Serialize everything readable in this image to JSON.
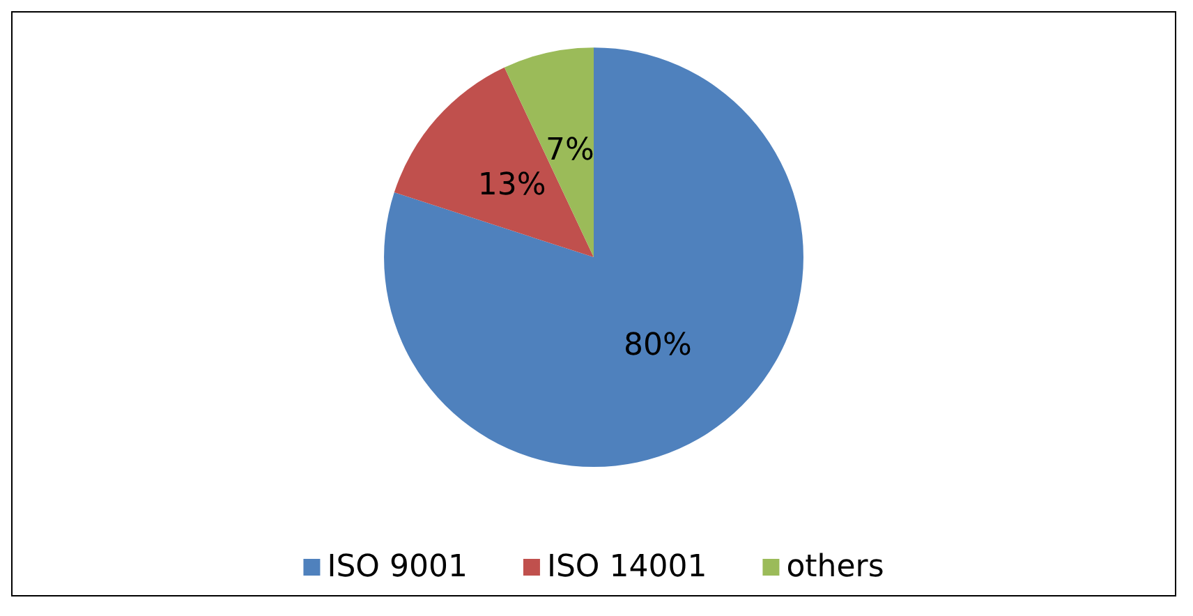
{
  "chart_data": {
    "type": "pie",
    "categories": [
      "ISO 9001",
      "ISO 14001",
      "others"
    ],
    "values": [
      80,
      13,
      7
    ],
    "colors": [
      "#4f81bd",
      "#c0504d",
      "#9bbb59"
    ],
    "value_labels": [
      "80%",
      "13%",
      "7%"
    ],
    "legend": "bottom"
  }
}
